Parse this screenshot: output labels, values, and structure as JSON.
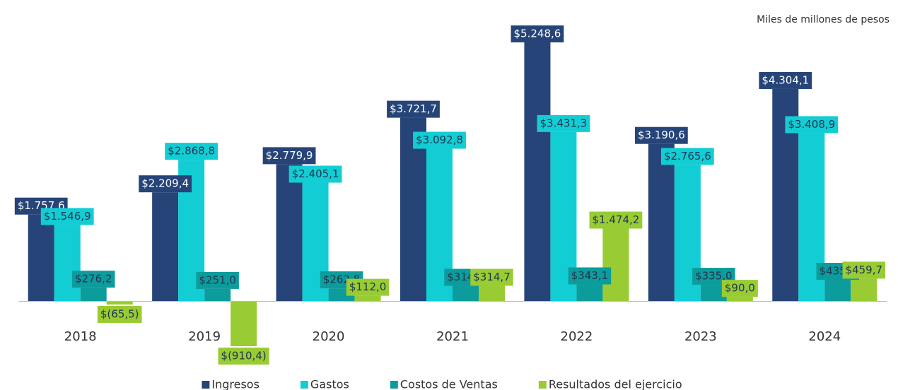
{
  "chart_data": {
    "type": "bar",
    "subtitle": "Miles de millones de pesos",
    "categories": [
      "2018",
      "2019",
      "2020",
      "2021",
      "2022",
      "2023",
      "2024"
    ],
    "series": [
      {
        "name": "Ingresos",
        "color": "#264478",
        "values": [
          1757.6,
          2209.4,
          2779.9,
          3721.7,
          5248.6,
          3190.6,
          4304.1
        ],
        "value_labels": [
          "$1.757,6",
          "$2.209,4",
          "$2.779,9",
          "$3.721,7",
          "$5.248,6",
          "$3.190,6",
          "$4.304,1"
        ]
      },
      {
        "name": "Gastos",
        "color": "#12cdd4",
        "values": [
          1546.9,
          2868.8,
          2405.1,
          3092.8,
          3431.3,
          2765.6,
          3408.9
        ],
        "value_labels": [
          "$1.546,9",
          "$2.868,8",
          "$2.405,1",
          "$3.092,8",
          "$3.431,3",
          "$2.765,6",
          "$3.408,9"
        ]
      },
      {
        "name": "Costos de Ventas",
        "color": "#0d9c9c",
        "values": [
          276.2,
          251.0,
          262.8,
          314.2,
          343.1,
          335.0,
          435.5
        ],
        "value_labels": [
          "$276,2",
          "$251,0",
          "$262,8",
          "$314,2",
          "$343,1",
          "$335,0",
          "$435,5"
        ]
      },
      {
        "name": "Resultados del ejercicio",
        "color": "#99cc33",
        "values": [
          -65.5,
          -910.4,
          112.0,
          314.7,
          1474.2,
          90.0,
          459.7
        ],
        "value_labels": [
          "$(65,5)",
          "$(910,4)",
          "$112,0",
          "$314,7",
          "$1.474,2",
          "$90,0",
          "$459,7"
        ]
      }
    ],
    "legend": "bottom"
  }
}
